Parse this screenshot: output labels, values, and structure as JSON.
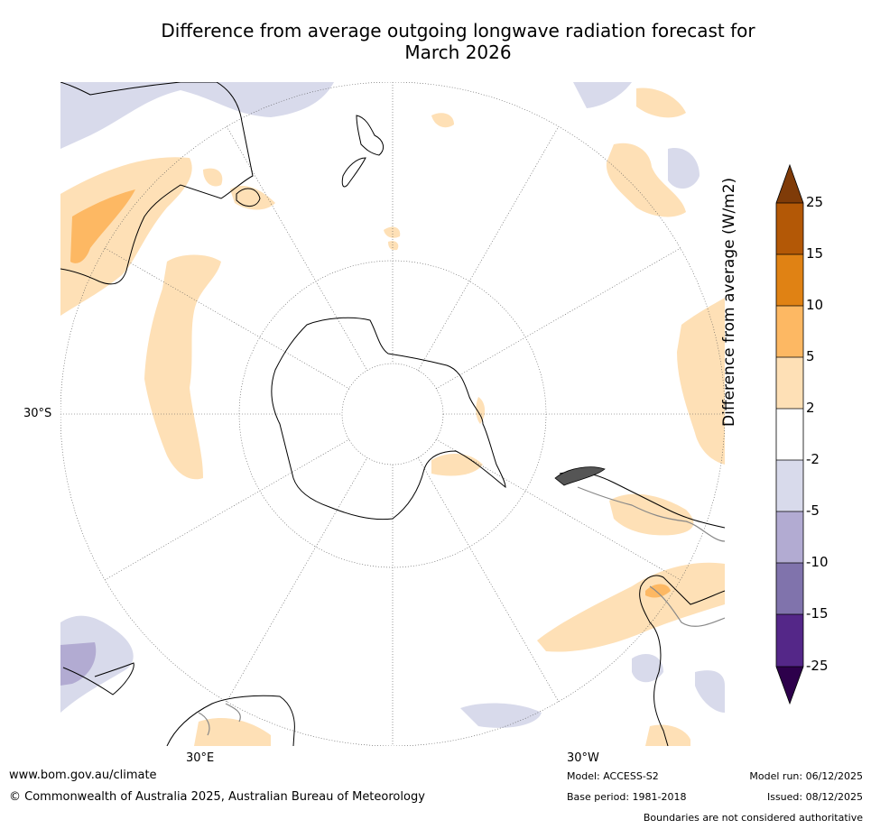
{
  "title": {
    "line1": "Difference from average outgoing longwave radiation forecast for",
    "line2": "March 2026"
  },
  "map_labels": {
    "lat_30s": "30°S",
    "lon_30e": "30°E",
    "lon_30w": "30°W"
  },
  "colorbar": {
    "title": "Difference from average (W/m2)",
    "levels": [
      "25",
      "15",
      "10",
      "5",
      "2",
      "-2",
      "-5",
      "-10",
      "-15",
      "-25"
    ],
    "colors": {
      "above_25": "#7f3b08",
      "15_25": "#b35806",
      "10_15": "#e08214",
      "5_10": "#fdb863",
      "2_5": "#fee0b6",
      "neutral": "#ffffff",
      "neg2_neg5": "#d8daeb",
      "neg5_neg10": "#b2abd2",
      "neg10_neg15": "#8073ac",
      "neg15_neg25": "#542788",
      "below_neg25": "#2d004b"
    }
  },
  "footer": {
    "url": "www.bom.gov.au/climate",
    "copyright": "© Commonwealth of Australia 2025, Australian Bureau of Meteorology",
    "model": "Model: ACCESS-S2",
    "base_period": "Base period: 1981-2018",
    "model_run": "Model run: 06/12/2025",
    "issued": "Issued: 08/12/2025",
    "disclaimer": "Boundaries are not considered authoritative"
  }
}
